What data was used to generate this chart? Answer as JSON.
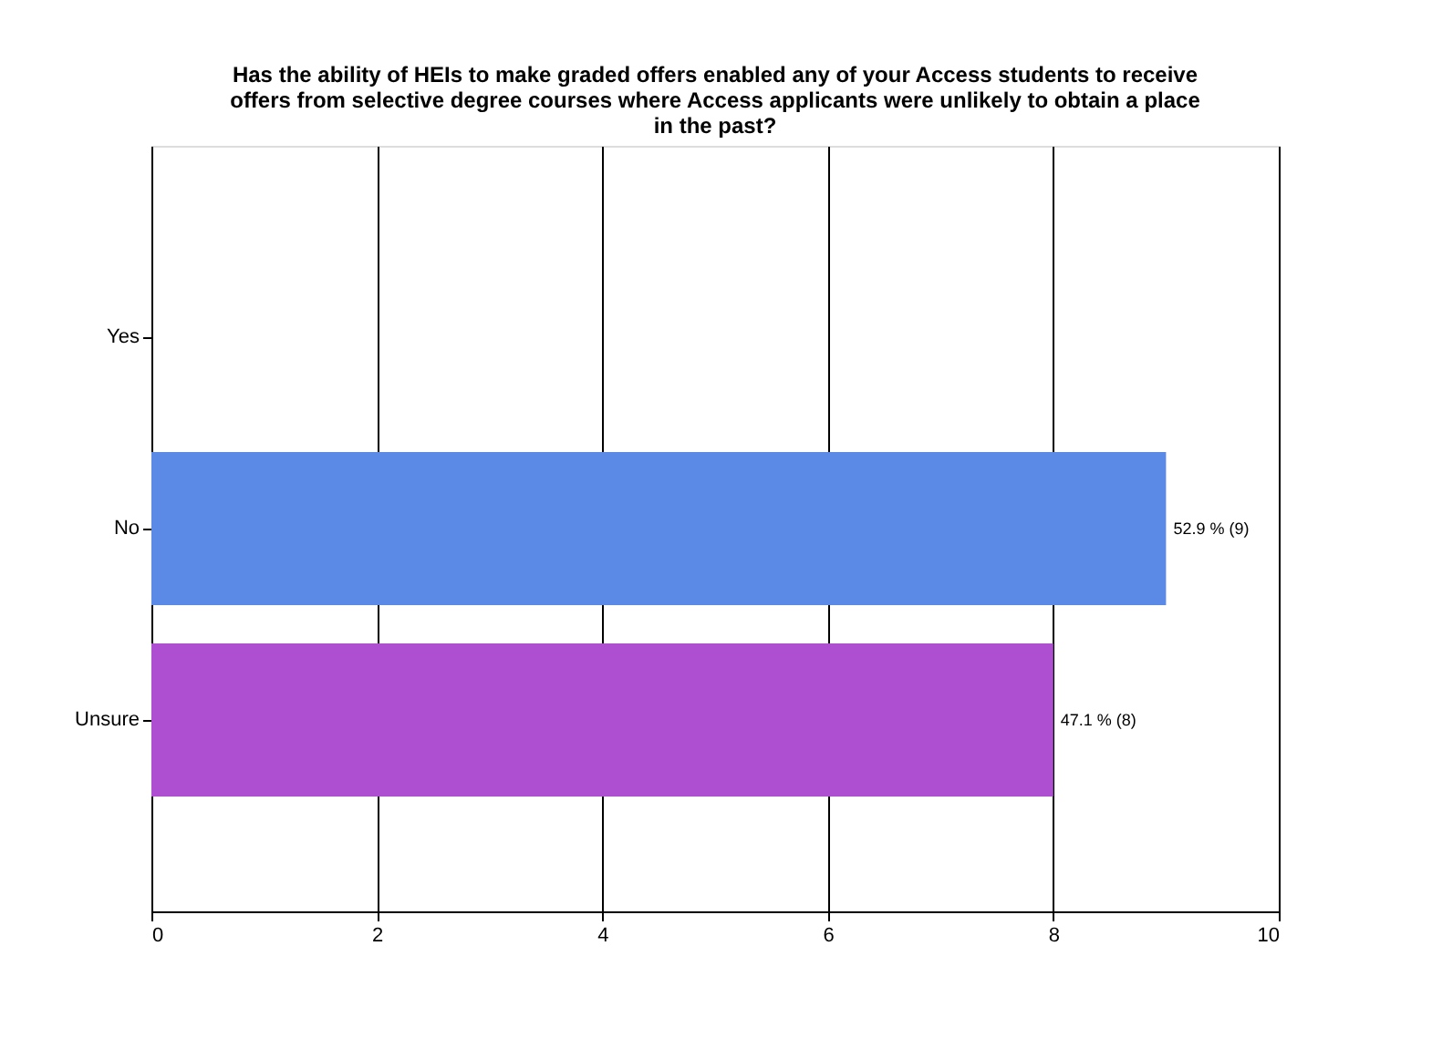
{
  "chart_data": {
    "type": "bar",
    "orientation": "horizontal",
    "title": "Has the ability of HEIs to make graded offers enabled any of your Access students to receive offers from selective degree courses where Access applicants were unlikely to obtain a place in the past?",
    "categories": [
      "Yes",
      "No",
      "Unsure"
    ],
    "values": [
      0,
      9,
      8
    ],
    "colors": [
      "#5b8ae6",
      "#5b8ae6",
      "#ad4fd0"
    ],
    "value_labels": [
      null,
      "52.9 % (9)",
      "47.1 % (8)"
    ],
    "xlim": [
      0,
      10
    ],
    "xticks": [
      0,
      2,
      4,
      6,
      8,
      10
    ],
    "grid": "x"
  }
}
